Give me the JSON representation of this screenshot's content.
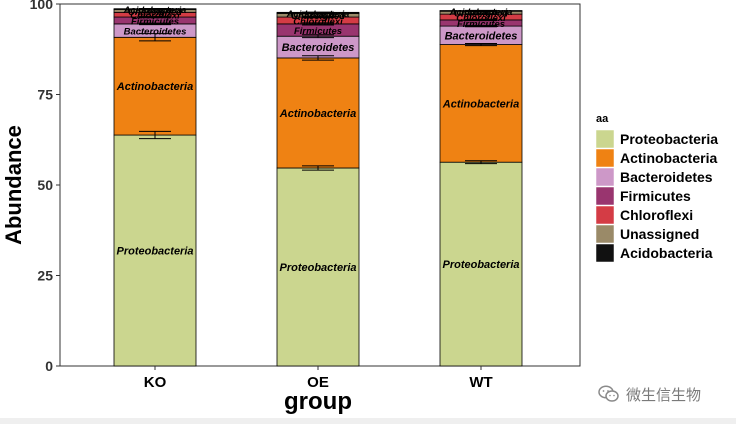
{
  "chart_data": {
    "type": "bar",
    "stacked": true,
    "title": "",
    "xlabel": "group",
    "ylabel": "Abundance",
    "ylim": [
      0,
      100
    ],
    "yticks": [
      0,
      25,
      50,
      75,
      100
    ],
    "categories": [
      "KO",
      "OE",
      "WT"
    ],
    "legend_title": "aa",
    "legend_position": "right",
    "grid": false,
    "series": [
      {
        "name": "Proteobacteria",
        "color": "#cbd68f",
        "values": [
          63.8,
          54.7,
          56.3
        ],
        "error": [
          1.0,
          0.6,
          0.4
        ]
      },
      {
        "name": "Actinobacteria",
        "color": "#ef8213",
        "values": [
          27.0,
          30.4,
          32.5
        ],
        "error": [
          1.0,
          0.6,
          0.3
        ]
      },
      {
        "name": "Bacteroidetes",
        "color": "#cd98c8",
        "values": [
          3.7,
          6.0,
          5.1
        ],
        "error": [
          0.2,
          0.4,
          0.2
        ]
      },
      {
        "name": "Firmicutes",
        "color": "#99356f",
        "values": [
          1.9,
          3.4,
          1.7
        ],
        "error": [
          0.2,
          0.3,
          0.2
        ]
      },
      {
        "name": "Chloroflexi",
        "color": "#d43c45",
        "values": [
          1.3,
          1.9,
          1.6
        ],
        "error": [
          0.1,
          0.2,
          0.1
        ]
      },
      {
        "name": "Unassigned",
        "color": "#9a8a68",
        "values": [
          0.8,
          1.0,
          0.8
        ],
        "error": [
          0.1,
          0.1,
          0.1
        ]
      },
      {
        "name": "Acidobacteria",
        "color": "#111111",
        "values": [
          0.2,
          0.3,
          0.2
        ],
        "error": [
          0.05,
          0.05,
          0.05
        ]
      }
    ]
  },
  "watermark": {
    "text": "微生信生物",
    "icon": "wechat-icon"
  }
}
